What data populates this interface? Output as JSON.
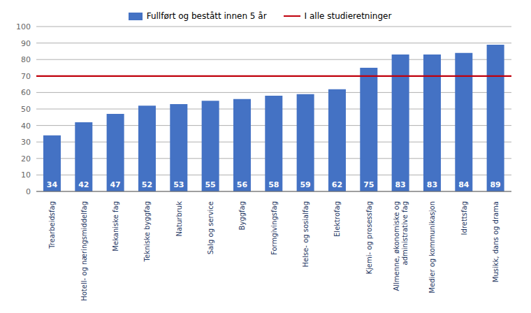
{
  "chart_data": {
    "type": "bar",
    "categories": [
      "Trearbeidsfag",
      "Hotell- og næringsmiddelfag",
      "Mekaniske fag",
      "Tekniske byggfag",
      "Naturbruk",
      "Salg og service",
      "Byggfag",
      "Formgivingsfag",
      "Helse- og sosialfag",
      "Elektrofag",
      "Kjemi- og prosessfag",
      "Allmenne, økonomiske og\nadministrative fag",
      "Medier og kommunikasjon",
      "Idrettsfag",
      "Musikk, dans og drama"
    ],
    "series": [
      {
        "name": "Fullført og bestått innen 5 år",
        "color": "#4472C4",
        "values": [
          34,
          42,
          47,
          52,
          53,
          55,
          56,
          58,
          59,
          62,
          75,
          83,
          83,
          84,
          89
        ]
      }
    ],
    "reference_line": {
      "name": "I alle studieretninger",
      "value": 70,
      "color": "#C0000C"
    },
    "ylim": [
      0,
      100
    ],
    "yticks": [
      0,
      10,
      20,
      30,
      40,
      50,
      60,
      70,
      80,
      90,
      100
    ],
    "grid": true,
    "legend": "top",
    "data_labels": true
  }
}
